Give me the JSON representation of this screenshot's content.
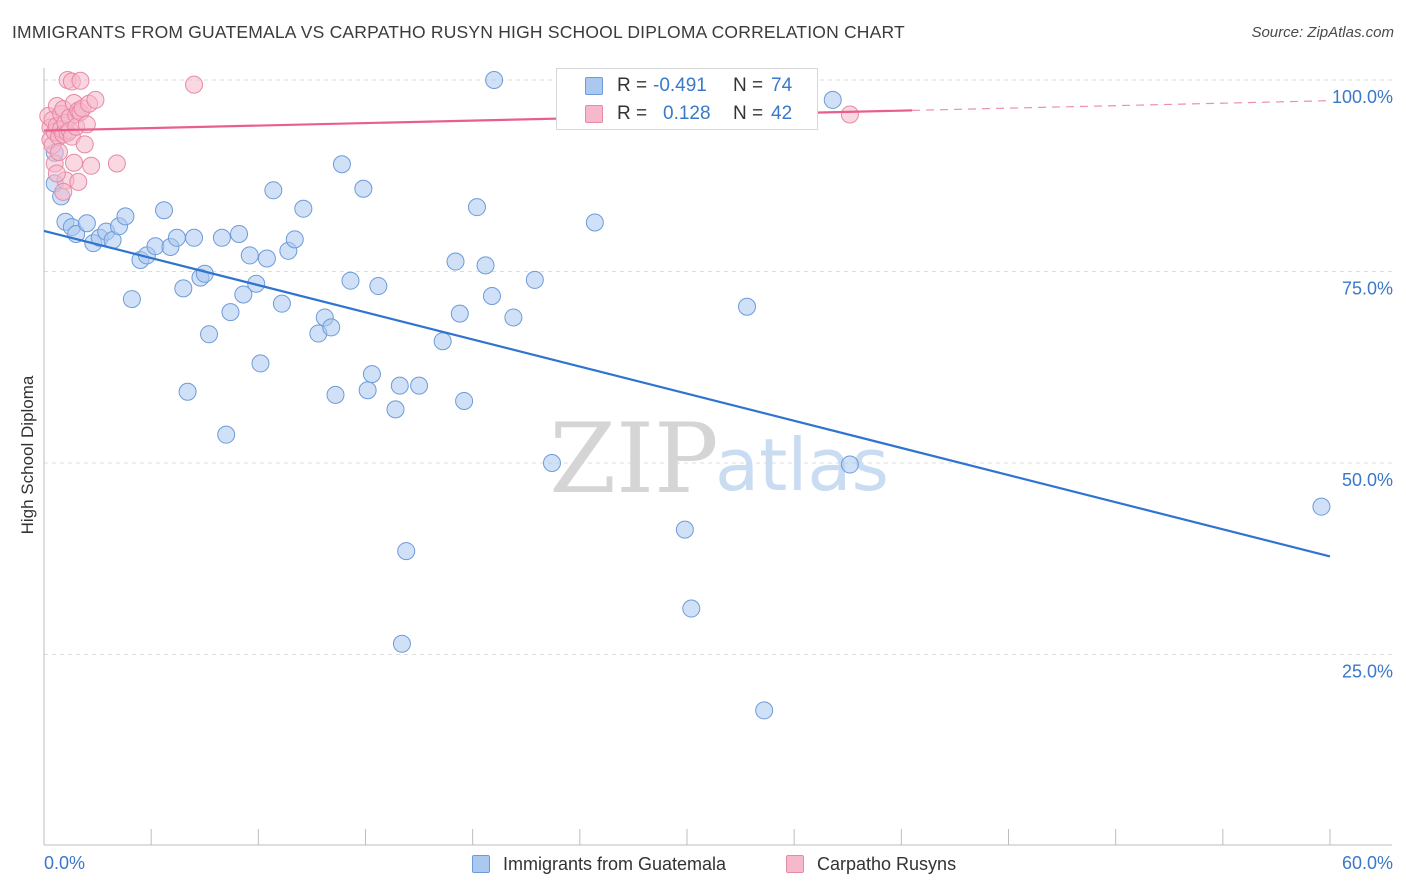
{
  "title": "IMMIGRANTS FROM GUATEMALA VS CARPATHO RUSYN HIGH SCHOOL DIPLOMA CORRELATION CHART",
  "source": "Source: ZipAtlas.com",
  "watermark": {
    "zip": "ZIP",
    "atlas": "atlas"
  },
  "colors": {
    "blue_fill": "#aac8f0",
    "blue_stroke": "#6d9bd8",
    "blue_line": "#2f74d0",
    "pink_fill": "#f6b8cb",
    "pink_stroke": "#e889a6",
    "pink_line": "#e8608a",
    "tick_text": "#3a78c9",
    "grid": "#dcdcdc"
  },
  "legend": {
    "r_label": "R =",
    "n_label": "N =",
    "series": [
      {
        "r": "-0.491",
        "n": "74"
      },
      {
        "r": "0.128",
        "n": "42"
      }
    ]
  },
  "chart_data": {
    "type": "scatter",
    "title": "IMMIGRANTS FROM GUATEMALA VS CARPATHO RUSYN HIGH SCHOOL DIPLOMA CORRELATION CHART",
    "xlabel": "",
    "ylabel": "High School Diploma",
    "xlim": [
      0,
      60
    ],
    "ylim": [
      0,
      105
    ],
    "x_tick_labels": [
      "0.0%",
      "60.0%"
    ],
    "y_ticks": [
      25,
      50,
      75,
      100
    ],
    "y_tick_labels": [
      "25.0%",
      "50.0%",
      "75.0%",
      "100.0%"
    ],
    "grid": true,
    "series": [
      {
        "name": "Immigrants from Guatemala",
        "color": "blue",
        "r": -0.491,
        "n": 74,
        "trend": {
          "x": [
            0,
            60
          ],
          "y": [
            80.3,
            37.8
          ],
          "dashed_from": null
        },
        "points": [
          [
            0.5,
            90.5
          ],
          [
            0.5,
            86.5
          ],
          [
            0.8,
            84.8
          ],
          [
            1.0,
            81.5
          ],
          [
            1.3,
            80.8
          ],
          [
            1.5,
            79.9
          ],
          [
            2.0,
            81.3
          ],
          [
            2.3,
            78.7
          ],
          [
            2.6,
            79.4
          ],
          [
            2.9,
            80.2
          ],
          [
            3.2,
            79.1
          ],
          [
            3.5,
            80.9
          ],
          [
            3.8,
            82.2
          ],
          [
            4.1,
            71.4
          ],
          [
            4.5,
            76.5
          ],
          [
            4.8,
            77.1
          ],
          [
            5.2,
            78.3
          ],
          [
            5.6,
            83.0
          ],
          [
            5.9,
            78.2
          ],
          [
            6.2,
            79.4
          ],
          [
            6.5,
            72.8
          ],
          [
            6.7,
            59.3
          ],
          [
            7.0,
            79.4
          ],
          [
            7.3,
            74.2
          ],
          [
            7.5,
            74.7
          ],
          [
            7.7,
            66.8
          ],
          [
            8.3,
            79.4
          ],
          [
            8.5,
            53.7
          ],
          [
            8.7,
            69.7
          ],
          [
            9.1,
            79.9
          ],
          [
            9.3,
            72.0
          ],
          [
            9.6,
            77.1
          ],
          [
            9.9,
            73.4
          ],
          [
            10.1,
            63.0
          ],
          [
            10.4,
            76.7
          ],
          [
            10.7,
            85.6
          ],
          [
            11.1,
            70.8
          ],
          [
            11.4,
            77.7
          ],
          [
            11.7,
            79.2
          ],
          [
            12.1,
            83.2
          ],
          [
            12.8,
            66.9
          ],
          [
            13.1,
            69.0
          ],
          [
            13.4,
            67.7
          ],
          [
            13.6,
            58.9
          ],
          [
            13.9,
            89.0
          ],
          [
            14.3,
            73.8
          ],
          [
            14.9,
            85.8
          ],
          [
            15.1,
            59.5
          ],
          [
            15.3,
            61.6
          ],
          [
            15.6,
            73.1
          ],
          [
            16.4,
            57.0
          ],
          [
            16.6,
            60.1
          ],
          [
            16.9,
            38.5
          ],
          [
            16.7,
            26.4
          ],
          [
            17.5,
            60.1
          ],
          [
            18.6,
            65.9
          ],
          [
            19.2,
            76.3
          ],
          [
            19.4,
            69.5
          ],
          [
            19.6,
            58.1
          ],
          [
            20.2,
            83.4
          ],
          [
            20.6,
            75.8
          ],
          [
            20.9,
            71.8
          ],
          [
            21.0,
            100.0
          ],
          [
            21.9,
            69.0
          ],
          [
            22.9,
            73.9
          ],
          [
            23.7,
            50.0
          ],
          [
            25.7,
            81.4
          ],
          [
            29.9,
            41.3
          ],
          [
            30.2,
            31.0
          ],
          [
            32.8,
            70.4
          ],
          [
            33.6,
            17.7
          ],
          [
            36.8,
            97.4
          ],
          [
            37.6,
            49.8
          ],
          [
            59.6,
            44.3
          ]
        ]
      },
      {
        "name": "Carpatho Rusyns",
        "color": "pink",
        "r": 0.128,
        "n": 42,
        "trend": {
          "x": [
            0,
            60
          ],
          "y": [
            93.4,
            97.3
          ],
          "dashed_from": 40.5
        },
        "points": [
          [
            0.2,
            95.3
          ],
          [
            0.3,
            93.8
          ],
          [
            0.3,
            92.2
          ],
          [
            0.4,
            94.8
          ],
          [
            0.4,
            91.5
          ],
          [
            0.5,
            93.2
          ],
          [
            0.5,
            89.1
          ],
          [
            0.6,
            96.6
          ],
          [
            0.6,
            94.0
          ],
          [
            0.7,
            92.6
          ],
          [
            0.7,
            90.6
          ],
          [
            0.8,
            95.6
          ],
          [
            0.8,
            93.6
          ],
          [
            0.9,
            96.2
          ],
          [
            0.9,
            92.9
          ],
          [
            1.0,
            94.4
          ],
          [
            1.0,
            86.9
          ],
          [
            1.1,
            93.1
          ],
          [
            1.1,
            100.0
          ],
          [
            1.2,
            95.1
          ],
          [
            1.2,
            93.4
          ],
          [
            1.3,
            99.8
          ],
          [
            1.3,
            92.6
          ],
          [
            1.4,
            97.0
          ],
          [
            1.4,
            89.2
          ],
          [
            1.5,
            95.5
          ],
          [
            1.5,
            93.9
          ],
          [
            1.6,
            96.0
          ],
          [
            1.6,
            86.7
          ],
          [
            1.7,
            99.9
          ],
          [
            1.7,
            95.8
          ],
          [
            1.8,
            96.3
          ],
          [
            1.9,
            91.6
          ],
          [
            2.0,
            94.2
          ],
          [
            2.1,
            96.9
          ],
          [
            2.2,
            88.8
          ],
          [
            2.4,
            97.4
          ],
          [
            3.4,
            89.1
          ],
          [
            7.0,
            99.4
          ],
          [
            37.6,
            95.5
          ],
          [
            0.6,
            87.8
          ],
          [
            0.9,
            85.4
          ]
        ]
      }
    ]
  },
  "bottom_legend": [
    {
      "label": "Immigrants from Guatemala"
    },
    {
      "label": "Carpatho Rusyns"
    }
  ]
}
